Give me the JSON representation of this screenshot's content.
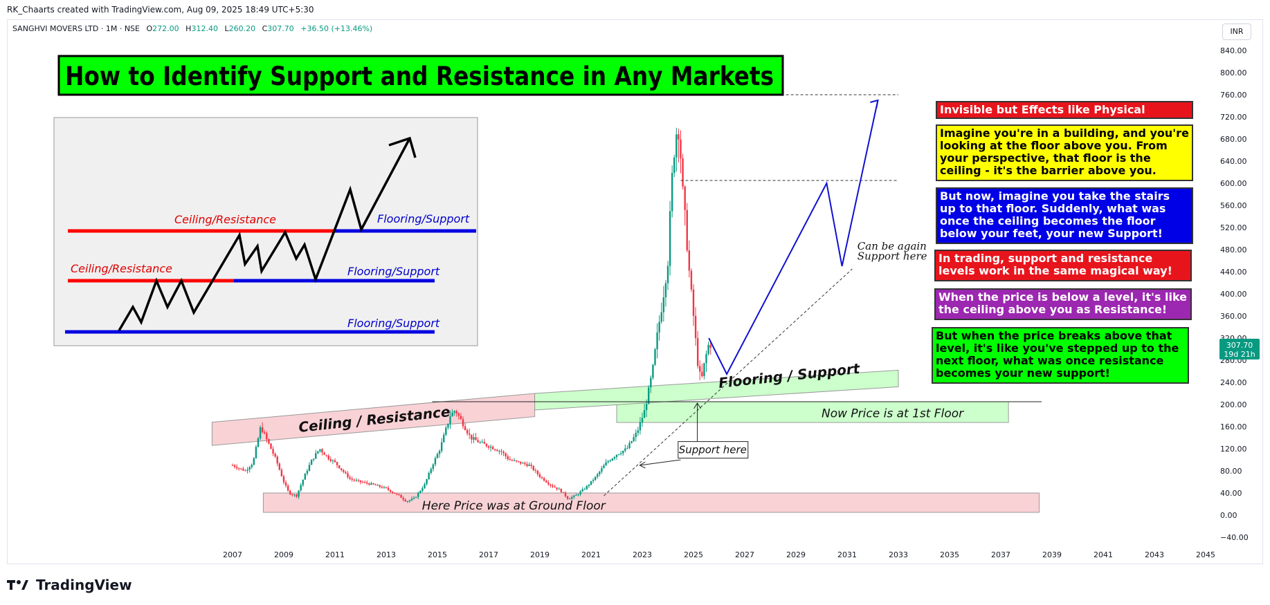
{
  "top_credit": "RK_Chaarts created with TradingView.com, Aug 09, 2025 18:49 UTC+5:30",
  "symbol": {
    "name": "SANGHVI MOVERS LTD · 1M · NSE",
    "o_label": "O",
    "o": "272.00",
    "h_label": "H",
    "h": "312.40",
    "l_label": "L",
    "l": "260.20",
    "c_label": "C",
    "c": "307.70",
    "change": "+36.50 (+13.46%)"
  },
  "currency": "INR",
  "title": "How to Identify Support and Resistance in Any Markets",
  "price_tag": {
    "price": "307.70",
    "countdown": "19d 21h"
  },
  "footer_brand": "TradingView",
  "colors": {
    "up": "#089981",
    "down": "#f23645",
    "title_bg": "#00ff00",
    "projection": "#1010d0",
    "resistance_line": "#ff0000",
    "support_line": "#0000e0"
  },
  "callouts": [
    {
      "text": "Invisible but Effects like Physical",
      "bg": "#e8141c",
      "fg": "#ffffff"
    },
    {
      "text": "Imagine you're in a building, and you're looking at the floor above you. From your perspective, that floor is the ceiling - it's the barrier above you.",
      "bg": "#ffff00",
      "fg": "#000000"
    },
    {
      "text": "But now, imagine you take the stairs up to that floor. Suddenly, what was once the ceiling becomes the floor below your feet, your new Support!",
      "bg": "#0000e6",
      "fg": "#ffffff"
    },
    {
      "text": "In trading, support and resistance levels work in the same magical way!",
      "bg": "#e8141c",
      "fg": "#ffffff"
    },
    {
      "text": "When the price is below a level, it's like the ceiling above you as Resistance!",
      "bg": "#9c27b0",
      "fg": "#ffffff"
    },
    {
      "text": "But when the price breaks above that level, it's like you've stepped up to the next floor, what was once resistance becomes your new support!",
      "bg": "#00ff00",
      "fg": "#000000"
    }
  ],
  "labels": {
    "ceiling_resistance": "Ceiling / Resistance",
    "flooring_support": "Flooring / Support",
    "first_floor": "Now Price is at 1st Floor",
    "ground_floor": "Here Price was at Ground Floor",
    "support_here": "Support here",
    "can_be_again": "Can be again",
    "support_here_2": "Support here"
  },
  "inset": {
    "ceiling_top": "Ceiling/Resistance",
    "flooring_top": "Flooring/Support",
    "ceiling_mid": "Ceiling/Resistance",
    "flooring_mid": "Flooring/Support",
    "flooring_bottom": "Flooring/Support"
  },
  "chart_data": {
    "type": "candlestick",
    "interval": "1M",
    "x_ticks": [
      "2007",
      "2009",
      "2011",
      "2013",
      "2015",
      "2017",
      "2019",
      "2021",
      "2023",
      "2025",
      "2027",
      "2029",
      "2031",
      "2033",
      "2035",
      "2037",
      "2039",
      "2041",
      "2043",
      "2045"
    ],
    "y_ticks": [
      "840.00",
      "800.00",
      "760.00",
      "720.00",
      "680.00",
      "640.00",
      "600.00",
      "560.00",
      "520.00",
      "480.00",
      "440.00",
      "400.00",
      "360.00",
      "320.00",
      "280.00",
      "240.00",
      "200.00",
      "160.00",
      "120.00",
      "80.00",
      "40.00",
      "0.00",
      "−40.00"
    ],
    "ylim": [
      -60,
      860
    ],
    "price_path": [
      [
        2007.0,
        90
      ],
      [
        2007.5,
        80
      ],
      [
        2007.8,
        95
      ],
      [
        2008.1,
        160
      ],
      [
        2008.4,
        130
      ],
      [
        2008.7,
        100
      ],
      [
        2009.0,
        60
      ],
      [
        2009.2,
        40
      ],
      [
        2009.5,
        35
      ],
      [
        2009.8,
        70
      ],
      [
        2010.1,
        100
      ],
      [
        2010.4,
        120
      ],
      [
        2010.7,
        105
      ],
      [
        2011.0,
        95
      ],
      [
        2011.3,
        80
      ],
      [
        2011.6,
        65
      ],
      [
        2012.0,
        60
      ],
      [
        2012.5,
        55
      ],
      [
        2013.0,
        48
      ],
      [
        2013.5,
        35
      ],
      [
        2013.8,
        25
      ],
      [
        2014.1,
        30
      ],
      [
        2014.5,
        55
      ],
      [
        2014.8,
        90
      ],
      [
        2015.1,
        120
      ],
      [
        2015.5,
        180
      ],
      [
        2015.7,
        190
      ],
      [
        2016.0,
        165
      ],
      [
        2016.3,
        140
      ],
      [
        2016.7,
        130
      ],
      [
        2017.0,
        125
      ],
      [
        2017.5,
        115
      ],
      [
        2017.8,
        100
      ],
      [
        2018.2,
        95
      ],
      [
        2018.6,
        90
      ],
      [
        2019.0,
        70
      ],
      [
        2019.4,
        55
      ],
      [
        2019.8,
        45
      ],
      [
        2020.1,
        30
      ],
      [
        2020.4,
        35
      ],
      [
        2020.8,
        50
      ],
      [
        2021.2,
        70
      ],
      [
        2021.6,
        95
      ],
      [
        2022.0,
        110
      ],
      [
        2022.4,
        120
      ],
      [
        2022.8,
        150
      ],
      [
        2023.1,
        190
      ],
      [
        2023.4,
        260
      ],
      [
        2023.6,
        330
      ],
      [
        2023.8,
        390
      ],
      [
        2024.0,
        460
      ],
      [
        2024.15,
        600
      ],
      [
        2024.3,
        690
      ],
      [
        2024.45,
        700
      ],
      [
        2024.55,
        600
      ],
      [
        2024.7,
        520
      ],
      [
        2024.85,
        430
      ],
      [
        2025.0,
        360
      ],
      [
        2025.15,
        280
      ],
      [
        2025.3,
        240
      ],
      [
        2025.45,
        280
      ],
      [
        2025.6,
        310
      ],
      [
        2025.7,
        307.7
      ]
    ],
    "ohlc_last": {
      "open": 272.0,
      "high": 312.4,
      "low": 260.2,
      "close": 307.7,
      "change": 36.5,
      "change_pct": 13.46
    },
    "levels": {
      "ceiling": 760,
      "prior_high": 605,
      "first_floor": 205,
      "ground_floor": 30
    },
    "projection_path": [
      [
        2025.6,
        320
      ],
      [
        2026.3,
        255
      ],
      [
        2030.2,
        600
      ],
      [
        2030.8,
        450
      ],
      [
        2032.2,
        750
      ]
    ],
    "rising_trendline": [
      [
        2021.5,
        35
      ],
      [
        2031.2,
        445
      ]
    ],
    "grid": false
  }
}
